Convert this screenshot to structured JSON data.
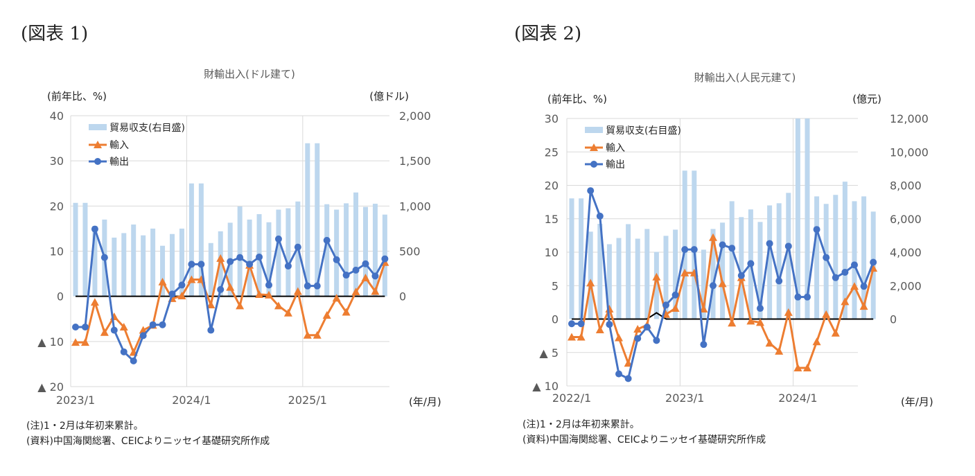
{
  "figures": [
    {
      "label": "(図表 1)",
      "notes": [
        "(注)1・2月は年初来累計。",
        "(資料)中国海関総署、CEICよりニッセイ基礎研究所作成"
      ]
    },
    {
      "label": "(図表 2)",
      "notes": [
        "(注)1・2月は年初来累計。",
        "(資料)中国海関総署、CEICよりニッセイ基礎研究所作成"
      ]
    }
  ],
  "colors": {
    "balance": "#bdd7ee",
    "imports": "#ed7d31",
    "exports": "#4472c4",
    "grid": "#d9d9d9",
    "zero": "#000000"
  },
  "chart_data": [
    {
      "type": "bar+line",
      "title": "財輸出入(ドル建て)",
      "ylabel_left": "(前年比、%)",
      "ylabel_right": "(億ドル)",
      "xlabel": "(年/月)",
      "ylim_left": [
        -20,
        40
      ],
      "ylim_right": [
        -1000,
        2000
      ],
      "yticks_left": [
        "40",
        "30",
        "20",
        "10",
        "0",
        "▲ 10",
        "▲ 20"
      ],
      "yticks_right": [
        "2,000",
        "1,500",
        "1,000",
        "500",
        "0"
      ],
      "xticks": [
        {
          "index": 0,
          "label": "2023/1"
        },
        {
          "index": 12,
          "label": "2024/1"
        },
        {
          "index": 24,
          "label": "2025/1"
        }
      ],
      "grid": true,
      "legend_position": "top-left",
      "x": [
        "2023/1",
        "2023/2",
        "2023/3",
        "2023/4",
        "2023/5",
        "2023/6",
        "2023/7",
        "2023/8",
        "2023/9",
        "2023/10",
        "2023/11",
        "2023/12",
        "2024/1",
        "2024/2",
        "2024/3",
        "2024/4",
        "2024/5",
        "2024/6",
        "2024/7",
        "2024/8",
        "2024/9",
        "2024/10",
        "2024/11",
        "2024/12",
        "2025/1",
        "2025/2",
        "2025/3",
        "2025/4",
        "2025/5",
        "2025/6",
        "2025/7",
        "2025/8",
        "2025/9"
      ],
      "series": [
        {
          "name": "貿易収支(右目盛)",
          "kind": "bar",
          "axis": "right",
          "values": [
            1035,
            1035,
            780,
            850,
            650,
            700,
            795,
            675,
            750,
            560,
            690,
            750,
            1250,
            1250,
            590,
            720,
            815,
            995,
            850,
            910,
            820,
            960,
            975,
            1050,
            1695,
            1695,
            1020,
            960,
            1030,
            1150,
            990,
            1025,
            905
          ]
        },
        {
          "name": "輸入",
          "kind": "line",
          "marker": "triangle",
          "axis": "left",
          "values": [
            -10.2,
            -10.2,
            -1.3,
            -8.0,
            -4.5,
            -6.8,
            -12.4,
            -7.5,
            -6.4,
            3.2,
            -0.5,
            0.1,
            3.7,
            3.7,
            -1.9,
            8.4,
            2.0,
            -2.1,
            6.9,
            0.4,
            0.3,
            -2.1,
            -3.7,
            1.1,
            -8.6,
            -8.6,
            -4.2,
            -0.4,
            -3.5,
            1.0,
            4.1,
            1.1,
            7.5
          ]
        },
        {
          "name": "輸出",
          "kind": "line",
          "marker": "circle",
          "axis": "left",
          "values": [
            -6.8,
            -6.8,
            14.9,
            8.6,
            -7.5,
            -12.3,
            -14.3,
            -8.7,
            -6.3,
            -6.3,
            0.5,
            2.5,
            7.1,
            7.1,
            -7.5,
            1.5,
            7.7,
            8.6,
            7.1,
            8.7,
            2.5,
            12.7,
            6.7,
            10.9,
            2.3,
            2.3,
            12.4,
            8.1,
            4.7,
            5.8,
            7.2,
            4.5,
            8.3
          ]
        }
      ]
    },
    {
      "type": "bar+line",
      "title": "財輸出入(人民元建て)",
      "ylabel_left": "(前年比、%)",
      "ylabel_right": "(億元)",
      "xlabel": "(年/月)",
      "ylim_left": [
        -10,
        30
      ],
      "ylim_right": [
        -4000,
        12000
      ],
      "yticks_left": [
        "30",
        "25",
        "20",
        "15",
        "10",
        "5",
        "0",
        "▲ 5",
        "▲ 10"
      ],
      "yticks_right": [
        "12,000",
        "10,000",
        "8,000",
        "6,000",
        "4,000",
        "2,000",
        "0"
      ],
      "xticks": [
        {
          "index": 0,
          "label": "2022/1"
        },
        {
          "index": 12,
          "label": "2023/1"
        },
        {
          "index": 24,
          "label": "2024/1"
        }
      ],
      "grid": true,
      "legend_position": "top-left",
      "x": [
        "2022/1",
        "2022/2",
        "2022/3",
        "2022/4",
        "2022/5",
        "2022/6",
        "2022/7",
        "2022/8",
        "2022/9",
        "2022/10",
        "2022/11",
        "2022/12",
        "2023/1",
        "2023/2",
        "2023/3",
        "2023/4",
        "2023/5",
        "2023/6",
        "2023/7",
        "2023/8",
        "2023/9",
        "2023/10",
        "2023/11",
        "2023/12",
        "2024/1",
        "2024/2",
        "2024/3",
        "2024/4",
        "2024/5",
        "2024/6",
        "2024/7",
        "2024/8",
        "2024/9"
      ],
      "series": [
        {
          "name": "貿易収支(右目盛)",
          "kind": "bar",
          "axis": "right",
          "values": [
            7220,
            7220,
            5230,
            5700,
            4480,
            4850,
            5680,
            4810,
            5390,
            4020,
            4980,
            5350,
            8880,
            8880,
            4150,
            5390,
            5770,
            7050,
            6100,
            6560,
            5810,
            6800,
            6930,
            7550,
            12500,
            12500,
            7340,
            6890,
            7430,
            8220,
            7050,
            7340,
            6430
          ]
        },
        {
          "name": "輸入",
          "kind": "line",
          "marker": "triangle",
          "axis": "left",
          "values": [
            -2.7,
            -2.7,
            5.4,
            -1.6,
            1.5,
            -2.8,
            -6.6,
            -1.5,
            -0.9,
            6.3,
            0.7,
            1.6,
            6.9,
            6.9,
            1.5,
            12.2,
            5.3,
            -0.6,
            6.2,
            -0.3,
            -0.5,
            -3.6,
            -4.8,
            1.0,
            -7.3,
            -7.3,
            -3.4,
            0.7,
            -2.1,
            2.6,
            4.9,
            1.9,
            7.6
          ]
        },
        {
          "name": "輸出",
          "kind": "line",
          "marker": "circle",
          "axis": "left",
          "values": [
            -0.7,
            -0.7,
            19.2,
            15.4,
            -0.8,
            -8.2,
            -8.9,
            -2.9,
            -1.2,
            -3.2,
            2.1,
            3.6,
            10.4,
            10.4,
            -3.8,
            5.0,
            11.1,
            10.6,
            6.5,
            8.3,
            1.6,
            11.3,
            5.7,
            10.9,
            3.3,
            3.3,
            13.4,
            9.2,
            6.2,
            7.0,
            8.1,
            4.9,
            8.5
          ]
        }
      ]
    }
  ]
}
